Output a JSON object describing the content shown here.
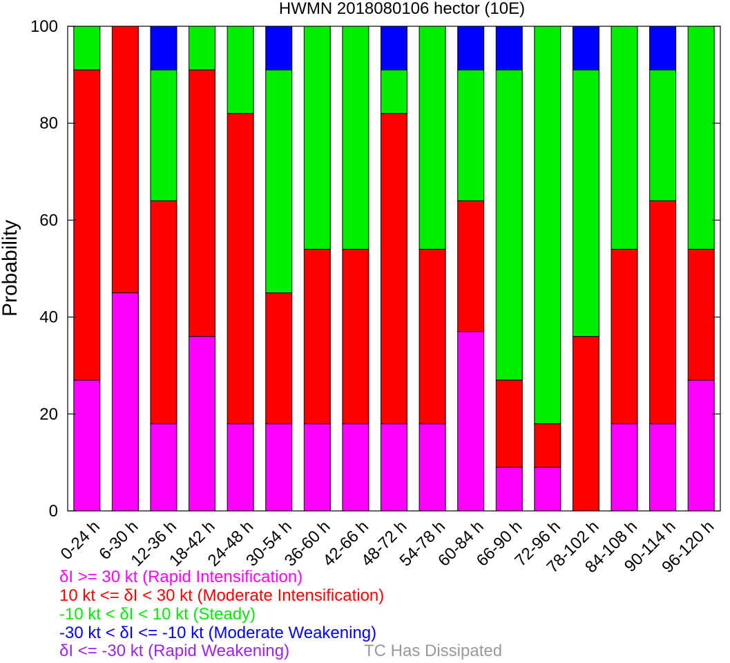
{
  "chart_data": {
    "type": "bar",
    "stacked": true,
    "title": "HWMN 2018080106 hector (10E)",
    "xlabel": "",
    "ylabel": "Probability",
    "ylim": [
      0,
      100
    ],
    "yticks": [
      0,
      20,
      40,
      60,
      80,
      100
    ],
    "grid": false,
    "categories": [
      "0-24 h",
      "6-30 h",
      "12-36 h",
      "18-42 h",
      "24-48 h",
      "30-54 h",
      "36-60 h",
      "42-66 h",
      "48-72 h",
      "54-78 h",
      "60-84 h",
      "66-90 h",
      "72-96 h",
      "78-102 h",
      "84-108 h",
      "90-114 h",
      "96-120 h"
    ],
    "series": [
      {
        "key": "ri",
        "color": "#ff00ff",
        "values": [
          27,
          45,
          18,
          36,
          18,
          18,
          18,
          18,
          18,
          18,
          37,
          9,
          9,
          0,
          18,
          18,
          27
        ]
      },
      {
        "key": "mi",
        "color": "#ff0000",
        "values": [
          64,
          55,
          46,
          55,
          64,
          27,
          36,
          36,
          64,
          36,
          27,
          18,
          9,
          36,
          36,
          46,
          27
        ]
      },
      {
        "key": "st",
        "color": "#00ee00",
        "values": [
          9,
          0,
          27,
          9,
          18,
          46,
          46,
          46,
          9,
          46,
          27,
          64,
          82,
          55,
          46,
          27,
          46
        ]
      },
      {
        "key": "mw",
        "color": "#0000ff",
        "values": [
          0,
          0,
          9,
          0,
          0,
          9,
          0,
          0,
          9,
          0,
          9,
          9,
          0,
          9,
          0,
          9,
          0
        ]
      },
      {
        "key": "rw",
        "color": "#a020f0",
        "values": [
          0,
          0,
          0,
          0,
          0,
          0,
          0,
          0,
          0,
          0,
          0,
          0,
          0,
          0,
          0,
          0,
          0
        ]
      }
    ]
  },
  "legend": [
    {
      "text": "δI >= 30 kt (Rapid Intensification)",
      "color": "#ff00ff"
    },
    {
      "text": "10 kt <= δI < 30 kt (Moderate Intensification)",
      "color": "#ff0000"
    },
    {
      "text": "-10 kt < δI < 10 kt (Steady)",
      "color": "#00ee00"
    },
    {
      "text": "-30 kt < δI <= -10 kt (Moderate Weakening)",
      "color": "#0000ff"
    },
    {
      "text": "δI <= -30 kt (Rapid Weakening)",
      "color": "#a020f0"
    }
  ],
  "dissipated": {
    "text": "TC Has Dissipated",
    "color": "#999999"
  }
}
